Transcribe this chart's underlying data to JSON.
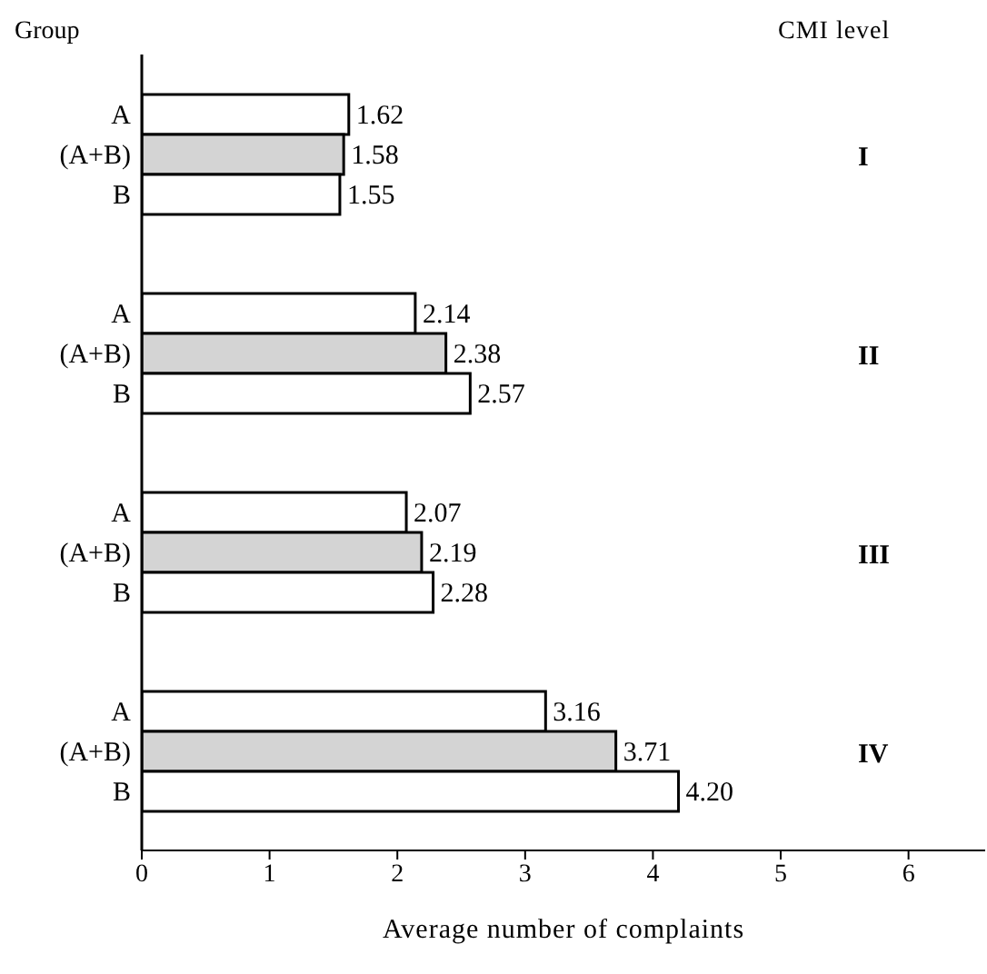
{
  "chart_data": {
    "type": "bar",
    "orientation": "horizontal",
    "xlabel": "Average number of complaints",
    "ylabel": "Group",
    "y2label": "CMI level",
    "categories": [
      "I",
      "II",
      "III",
      "IV"
    ],
    "series": [
      {
        "name": "A",
        "color": "#ffffff",
        "values": [
          1.62,
          2.14,
          2.07,
          3.16
        ],
        "value_labels": [
          "1.62",
          "2.14",
          "2.07",
          "3.16"
        ]
      },
      {
        "name": "(A+B)",
        "color": "#d4d4d4",
        "values": [
          1.58,
          2.38,
          2.19,
          3.71
        ],
        "value_labels": [
          "1.58",
          "2.38",
          "2.19",
          "3.71"
        ]
      },
      {
        "name": "B",
        "color": "#ffffff",
        "values": [
          1.55,
          2.57,
          2.28,
          4.2
        ],
        "value_labels": [
          "1.55",
          "2.57",
          "2.28",
          "4.20"
        ]
      }
    ],
    "xlim": [
      0,
      6.6
    ],
    "xticks": [
      0,
      1,
      2,
      3,
      4,
      5,
      6
    ],
    "grid": false,
    "legend": false
  }
}
